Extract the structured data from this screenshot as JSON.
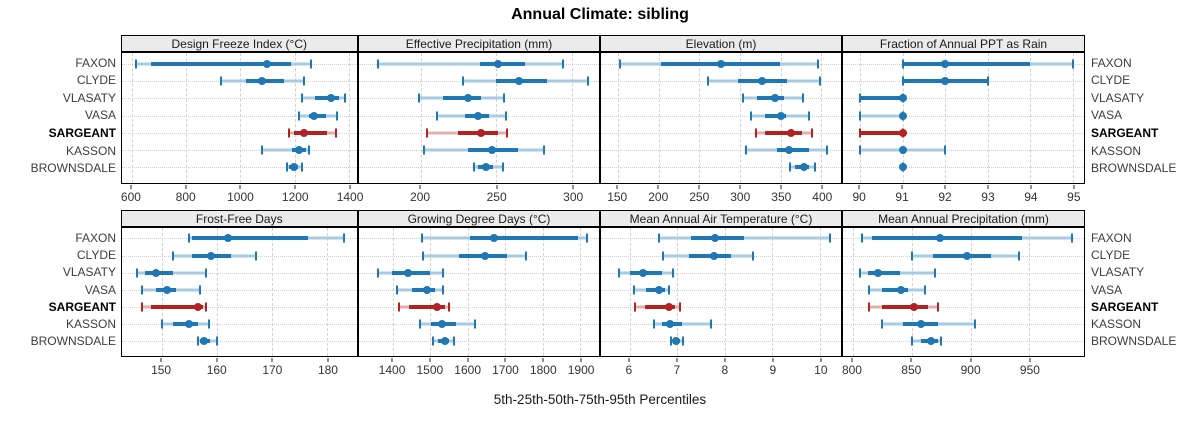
{
  "title": "Annual Climate: sibling",
  "footer": "5th-25th-50th-75th-95th Percentiles",
  "percentile_labels": [
    "5th",
    "25th",
    "50th",
    "75th",
    "95th"
  ],
  "sites": [
    "FAXON",
    "CLYDE",
    "VLASATY",
    "VASA",
    "SARGEANT",
    "KASSON",
    "BROWNSDALE"
  ],
  "highlight_site": "SARGEANT",
  "colors": {
    "primary": "#1f77b4",
    "primary_light": "#a6cbe3",
    "highlight": "#b22222",
    "highlight_light": "#e2aeae",
    "strip_bg": "#ebebeb",
    "grid": "#d2d2d2"
  },
  "chart_data": [
    {
      "type": "dot-interval",
      "title": "Design Freeze Index (°C)",
      "row": 0,
      "col": 0,
      "xlim": [
        562,
        1429
      ],
      "ticks": [
        600,
        800,
        1000,
        1200,
        1400
      ],
      "series": [
        {
          "name": "FAXON",
          "values": [
            615,
            669,
            1099,
            1186,
            1259
          ]
        },
        {
          "name": "CLYDE",
          "values": [
            930,
            1020,
            1080,
            1160,
            1235
          ]
        },
        {
          "name": "VLASATY",
          "values": [
            1225,
            1276,
            1333,
            1361,
            1386
          ]
        },
        {
          "name": "VASA",
          "values": [
            1215,
            1252,
            1270,
            1316,
            1357
          ]
        },
        {
          "name": "SARGEANT",
          "values": [
            1180,
            1196,
            1233,
            1320,
            1350
          ]
        },
        {
          "name": "KASSON",
          "values": [
            1080,
            1188,
            1217,
            1240,
            1253
          ]
        },
        {
          "name": "BROWNSDALE",
          "values": [
            1173,
            1180,
            1197,
            1213,
            1228
          ]
        }
      ]
    },
    {
      "type": "dot-interval",
      "title": "Effective Precipitation (mm)",
      "row": 0,
      "col": 1,
      "xlim": [
        159.5,
        317.5
      ],
      "ticks": [
        200,
        250,
        300
      ],
      "series": [
        {
          "name": "FAXON",
          "values": [
            172,
            239,
            251,
            269,
            294
          ]
        },
        {
          "name": "CLYDE",
          "values": [
            228,
            250,
            265,
            283,
            310
          ]
        },
        {
          "name": "VLASATY",
          "values": [
            199,
            215,
            231,
            240,
            255
          ]
        },
        {
          "name": "VASA",
          "values": [
            211,
            229,
            238,
            245,
            256
          ]
        },
        {
          "name": "SARGEANT",
          "values": [
            204,
            225,
            240,
            251,
            257
          ]
        },
        {
          "name": "KASSON",
          "values": [
            202,
            231,
            247,
            264,
            281
          ]
        },
        {
          "name": "BROWNSDALE",
          "values": [
            235,
            238,
            243,
            248,
            254
          ]
        }
      ]
    },
    {
      "type": "dot-interval",
      "title": "Elevation (m)",
      "row": 0,
      "col": 2,
      "xlim": [
        129,
        424
      ],
      "ticks": [
        150,
        200,
        250,
        300,
        350,
        400
      ],
      "series": [
        {
          "name": "FAXON",
          "values": [
            152,
            203,
            277,
            349,
            396
          ]
        },
        {
          "name": "CLYDE",
          "values": [
            260,
            297,
            327,
            358,
            398
          ]
        },
        {
          "name": "VLASATY",
          "values": [
            303,
            321,
            343,
            354,
            377
          ]
        },
        {
          "name": "VASA",
          "values": [
            313,
            330,
            350,
            357,
            385
          ]
        },
        {
          "name": "SARGEANT",
          "values": [
            319,
            331,
            363,
            376,
            388
          ]
        },
        {
          "name": "KASSON",
          "values": [
            307,
            345,
            360,
            385,
            407
          ]
        },
        {
          "name": "BROWNSDALE",
          "values": [
            361,
            368,
            378,
            385,
            392
          ]
        }
      ]
    },
    {
      "type": "dot-interval",
      "title": "Fraction of Annual PPT as Rain",
      "row": 0,
      "col": 3,
      "xlim": [
        89.6,
        95.26
      ],
      "ticks": [
        90,
        91,
        92,
        93,
        94,
        95
      ],
      "series": [
        {
          "name": "FAXON",
          "values": [
            91,
            91,
            92,
            94,
            95
          ]
        },
        {
          "name": "CLYDE",
          "values": [
            91,
            91,
            92,
            93,
            93
          ]
        },
        {
          "name": "VLASATY",
          "values": [
            90,
            90,
            91,
            91,
            91
          ]
        },
        {
          "name": "VASA",
          "values": [
            90,
            91,
            91,
            91,
            91
          ]
        },
        {
          "name": "SARGEANT",
          "values": [
            90,
            90,
            91,
            91,
            91
          ]
        },
        {
          "name": "KASSON",
          "values": [
            90,
            91,
            91,
            91,
            92
          ]
        },
        {
          "name": "BROWNSDALE",
          "values": [
            91,
            91,
            91,
            91,
            91
          ]
        }
      ]
    },
    {
      "type": "dot-interval",
      "title": "Frost-Free Days",
      "row": 1,
      "col": 0,
      "xlim": [
        142.7,
        185.4
      ],
      "ticks": [
        150,
        160,
        170,
        180
      ],
      "series": [
        {
          "name": "FAXON",
          "values": [
            155,
            155.5,
            162,
            176.5,
            183
          ]
        },
        {
          "name": "CLYDE",
          "values": [
            152,
            155.5,
            159,
            162.5,
            167
          ]
        },
        {
          "name": "VLASATY",
          "values": [
            145.5,
            147,
            149,
            152,
            158
          ]
        },
        {
          "name": "VASA",
          "values": [
            146.5,
            149,
            151,
            152.5,
            157
          ]
        },
        {
          "name": "SARGEANT",
          "values": [
            146.5,
            148,
            156.5,
            157.5,
            158
          ]
        },
        {
          "name": "KASSON",
          "values": [
            150,
            152,
            155,
            156.5,
            158.5
          ]
        },
        {
          "name": "BROWNSDALE",
          "values": [
            156.5,
            157,
            157.7,
            158.7,
            160
          ]
        }
      ]
    },
    {
      "type": "dot-interval",
      "title": "Growing Degree Days (°C)",
      "row": 1,
      "col": 1,
      "xlim": [
        1310,
        1950
      ],
      "ticks": [
        1400,
        1500,
        1600,
        1700,
        1800,
        1900
      ],
      "series": [
        {
          "name": "FAXON",
          "values": [
            1478,
            1605,
            1670,
            1895,
            1918
          ]
        },
        {
          "name": "CLYDE",
          "values": [
            1481,
            1577,
            1646,
            1705,
            1754
          ]
        },
        {
          "name": "VLASATY",
          "values": [
            1360,
            1398,
            1440,
            1500,
            1535
          ]
        },
        {
          "name": "VASA",
          "values": [
            1411,
            1450,
            1490,
            1513,
            1533
          ]
        },
        {
          "name": "SARGEANT",
          "values": [
            1416,
            1442,
            1517,
            1540,
            1549
          ]
        },
        {
          "name": "KASSON",
          "values": [
            1472,
            1502,
            1530,
            1568,
            1620
          ]
        },
        {
          "name": "BROWNSDALE",
          "values": [
            1508,
            1520,
            1538,
            1550,
            1563
          ]
        }
      ]
    },
    {
      "type": "dot-interval",
      "title": "Mean Annual Air Temperature (°C)",
      "row": 1,
      "col": 2,
      "xlim": [
        5.4,
        10.44
      ],
      "ticks": [
        6,
        7,
        8,
        9,
        10
      ],
      "series": [
        {
          "name": "FAXON",
          "values": [
            6.62,
            7.3,
            7.79,
            8.4,
            10.2
          ]
        },
        {
          "name": "CLYDE",
          "values": [
            6.7,
            7.25,
            7.77,
            8.12,
            8.6
          ]
        },
        {
          "name": "VLASATY",
          "values": [
            5.78,
            6.0,
            6.28,
            6.68,
            6.92
          ]
        },
        {
          "name": "VASA",
          "values": [
            6.1,
            6.35,
            6.62,
            6.75,
            6.83
          ]
        },
        {
          "name": "SARGEANT",
          "values": [
            6.12,
            6.33,
            6.82,
            6.95,
            7.05
          ]
        },
        {
          "name": "KASSON",
          "values": [
            6.52,
            6.68,
            6.85,
            7.1,
            7.7
          ]
        },
        {
          "name": "BROWNSDALE",
          "values": [
            6.88,
            6.93,
            6.98,
            7.05,
            7.12
          ]
        }
      ]
    },
    {
      "type": "dot-interval",
      "title": "Mean Annual Precipitation (mm)",
      "row": 1,
      "col": 3,
      "xlim": [
        791.6,
        996.4
      ],
      "ticks": [
        800,
        850,
        900,
        950
      ],
      "series": [
        {
          "name": "FAXON",
          "values": [
            808,
            816,
            874,
            944,
            986
          ]
        },
        {
          "name": "CLYDE",
          "values": [
            850,
            868,
            897,
            917,
            941
          ]
        },
        {
          "name": "VLASATY",
          "values": [
            806,
            813,
            821,
            840,
            870
          ]
        },
        {
          "name": "VASA",
          "values": [
            814,
            825,
            841,
            847,
            861
          ]
        },
        {
          "name": "SARGEANT",
          "values": [
            814,
            825,
            852,
            864,
            872
          ]
        },
        {
          "name": "KASSON",
          "values": [
            825,
            843,
            858,
            872,
            904
          ]
        },
        {
          "name": "BROWNSDALE",
          "values": [
            850,
            858,
            866,
            872,
            875
          ]
        }
      ]
    }
  ]
}
